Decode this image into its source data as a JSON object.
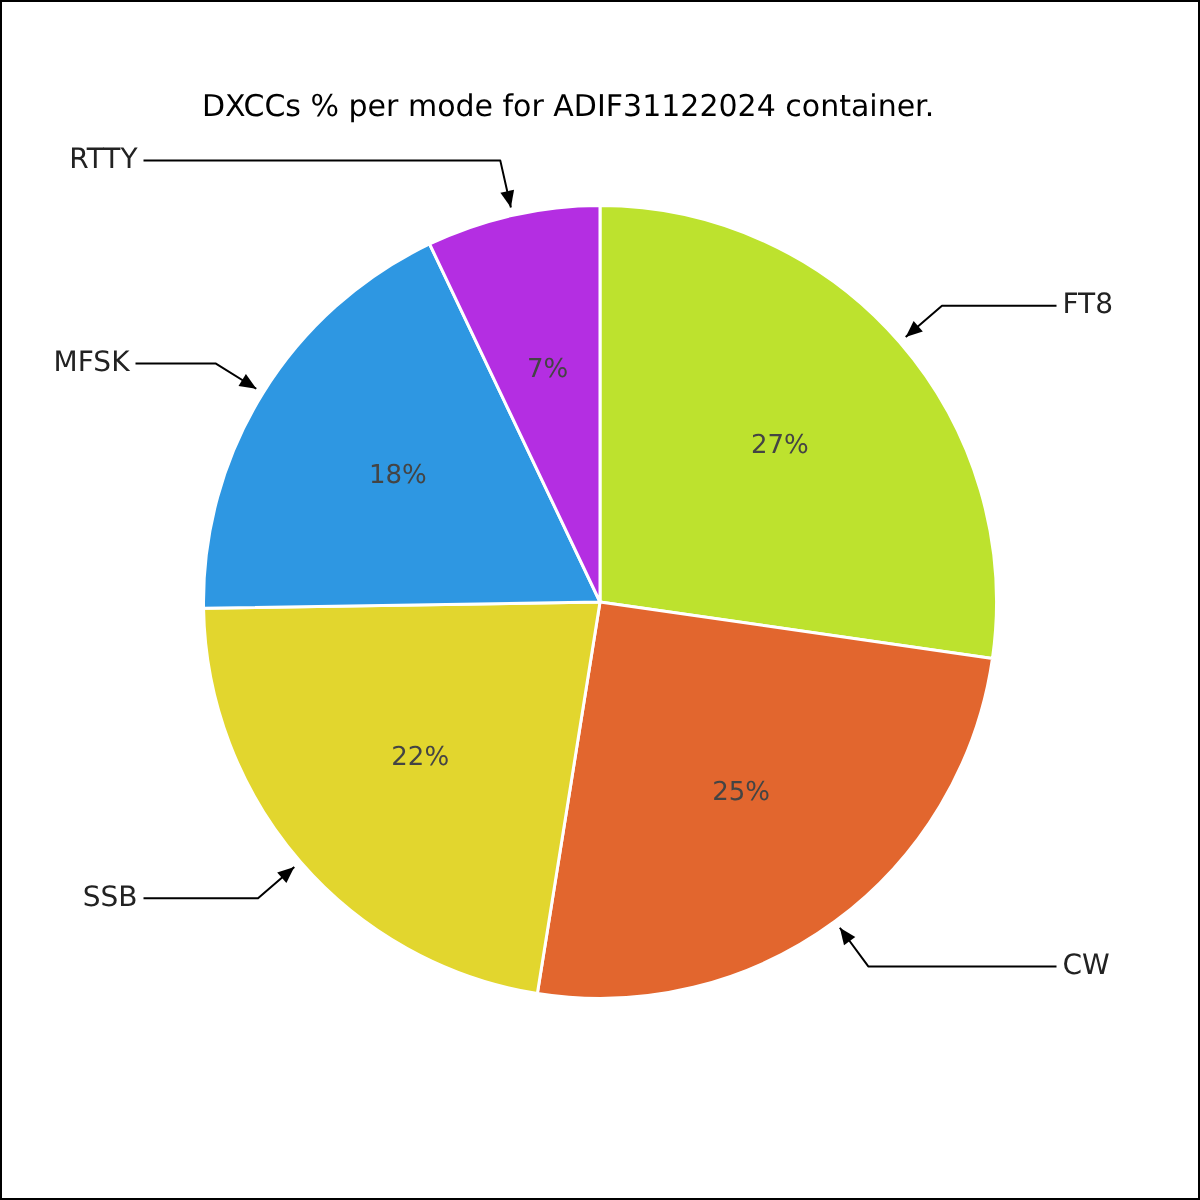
{
  "chart_data": {
    "type": "pie",
    "title": "DXCCs % per mode for ADIF31122024 container.",
    "categories": [
      "FT8",
      "CW",
      "SSB",
      "MFSK",
      "RTTY"
    ],
    "values": [
      27,
      25,
      22,
      18,
      7
    ],
    "colors": [
      "#bde22e",
      "#e2662e",
      "#e2d62e",
      "#2e97e2",
      "#b42ee2"
    ],
    "value_labels": [
      "27%",
      "25%",
      "22%",
      "18%",
      "7%"
    ],
    "legend": false
  }
}
